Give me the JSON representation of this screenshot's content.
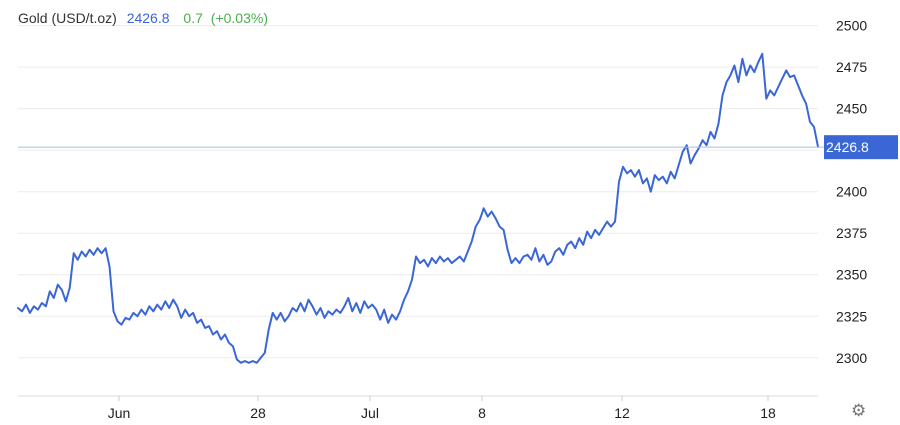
{
  "chart_data": {
    "type": "line",
    "legend": {
      "name": "Gold (USD/t.oz)",
      "price": "2426.8",
      "change": "0.7",
      "change_pct": "(+0.03%)"
    },
    "last_value_label": "2426.8",
    "y_ticks": [
      2300,
      2325,
      2350,
      2375,
      2400,
      2425,
      2450,
      2475,
      2500
    ],
    "y_tick_labels": [
      "2300",
      "2325",
      "2350",
      "2375",
      "2400",
      "2450",
      "2475",
      "2500"
    ],
    "ylim": [
      2277,
      2513
    ],
    "x_labels": [
      "Jun",
      "28",
      "Jul",
      "8",
      "12",
      "18"
    ],
    "grid": true,
    "colors": {
      "line": "#3a66d6",
      "price_text": "#3a66d6",
      "change_text": "#4caf50",
      "grid": "#ececec",
      "axis_text": "#222222",
      "last_value_bg": "#3a66d6",
      "last_value_line": "#a9bee3"
    },
    "settings_icon": "gear-icon",
    "series": [
      {
        "values": [
          2330,
          2328,
          2332,
          2327,
          2331,
          2329,
          2333,
          2331,
          2340,
          2336,
          2344,
          2341,
          2334,
          2342,
          2363,
          2359,
          2364,
          2361,
          2365,
          2362,
          2366,
          2363,
          2366,
          2355,
          2328,
          2322,
          2320,
          2324,
          2323,
          2327,
          2325,
          2329,
          2326,
          2331,
          2328,
          2332,
          2329,
          2334,
          2330,
          2335,
          2331,
          2324,
          2329,
          2325,
          2327,
          2321,
          2323,
          2318,
          2319,
          2314,
          2316,
          2311,
          2314,
          2309,
          2307,
          2299,
          2297,
          2298,
          2297,
          2298,
          2297,
          2300,
          2303,
          2317,
          2327,
          2323,
          2327,
          2322,
          2325,
          2330,
          2328,
          2333,
          2328,
          2335,
          2331,
          2326,
          2330,
          2324,
          2328,
          2326,
          2329,
          2327,
          2331,
          2336,
          2328,
          2333,
          2327,
          2334,
          2330,
          2332,
          2329,
          2323,
          2329,
          2321,
          2326,
          2323,
          2328,
          2335,
          2340,
          2347,
          2361,
          2357,
          2359,
          2355,
          2360,
          2357,
          2361,
          2358,
          2360,
          2357,
          2359,
          2361,
          2358,
          2364,
          2370,
          2379,
          2383,
          2390,
          2385,
          2388,
          2384,
          2379,
          2377,
          2365,
          2357,
          2360,
          2357,
          2361,
          2362,
          2359,
          2366,
          2358,
          2362,
          2356,
          2358,
          2364,
          2366,
          2362,
          2368,
          2370,
          2366,
          2372,
          2368,
          2376,
          2372,
          2377,
          2374,
          2378,
          2382,
          2379,
          2382,
          2406,
          2415,
          2411,
          2413,
          2409,
          2413,
          2405,
          2408,
          2400,
          2410,
          2407,
          2409,
          2405,
          2412,
          2408,
          2416,
          2424,
          2428,
          2417,
          2422,
          2426,
          2431,
          2428,
          2436,
          2432,
          2441,
          2458,
          2466,
          2470,
          2476,
          2466,
          2480,
          2470,
          2476,
          2472,
          2478,
          2483,
          2456,
          2461,
          2458,
          2463,
          2468,
          2473,
          2469,
          2470,
          2464,
          2458,
          2453,
          2442,
          2439,
          2427
        ]
      }
    ]
  }
}
